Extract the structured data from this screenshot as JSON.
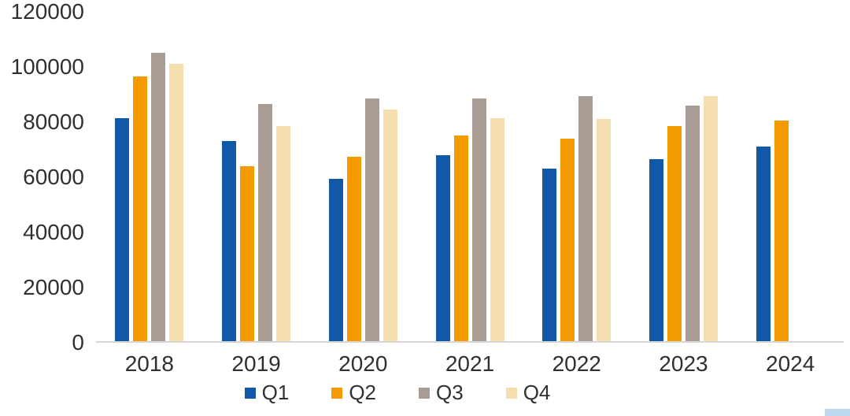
{
  "chart_data": {
    "type": "bar",
    "title": "",
    "xlabel": "",
    "ylabel": "",
    "categories": [
      "2018",
      "2019",
      "2020",
      "2021",
      "2022",
      "2023",
      "2024"
    ],
    "series": [
      {
        "name": "Q1",
        "color": "#1158A7",
        "values": [
          81000,
          72500,
          59000,
          67500,
          62500,
          66000,
          70500
        ]
      },
      {
        "name": "Q2",
        "color": "#F49B00",
        "values": [
          96000,
          63500,
          67000,
          74500,
          73500,
          78000,
          80000
        ]
      },
      {
        "name": "Q3",
        "color": "#A89C94",
        "values": [
          104500,
          86000,
          88000,
          88000,
          89000,
          85500,
          null
        ]
      },
      {
        "name": "Q4",
        "color": "#F5DFB0",
        "values": [
          100500,
          78000,
          84000,
          81000,
          80500,
          89000,
          null
        ]
      }
    ],
    "ylim": [
      0,
      120000
    ],
    "ytick_step": 20000,
    "yticks": [
      "0",
      "20000",
      "40000",
      "60000",
      "80000",
      "100000",
      "120000"
    ],
    "grid": false,
    "legend_position": "bottom"
  },
  "colors": {
    "background": "#FFFFFF",
    "axis_line": "#D6D6D6",
    "text": "#303030",
    "corner_artifact": "#BDD7EE"
  }
}
